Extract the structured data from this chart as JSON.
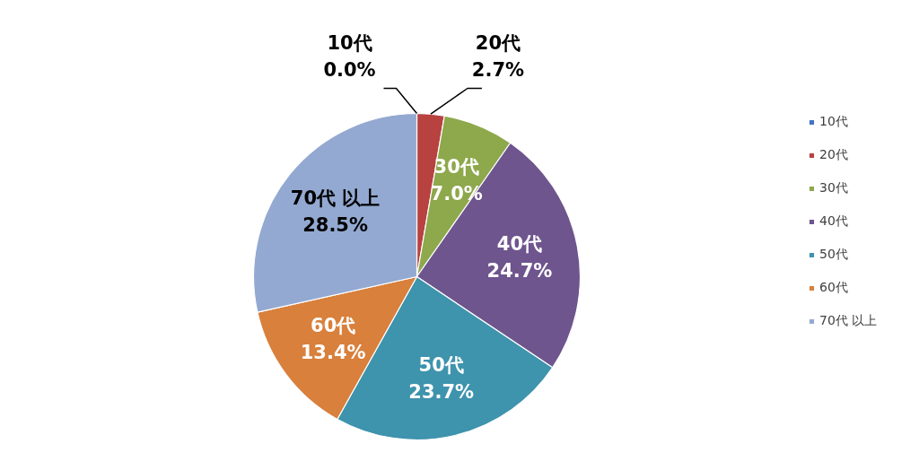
{
  "chart_data": {
    "type": "pie",
    "categories": [
      "10代",
      "20代",
      "30代",
      "40代",
      "50代",
      "60代",
      "70代 以上"
    ],
    "values": [
      0.0,
      2.7,
      7.0,
      24.7,
      23.7,
      13.4,
      28.5
    ],
    "value_labels": [
      "0.0%",
      "2.7%",
      "7.0%",
      "24.7%",
      "23.7%",
      "13.4%",
      "28.5%"
    ],
    "colors": [
      "#4472c4",
      "#b84240",
      "#8ea84c",
      "#6e558e",
      "#3e93ad",
      "#d8803c",
      "#93a9d1"
    ],
    "legend": "right"
  }
}
